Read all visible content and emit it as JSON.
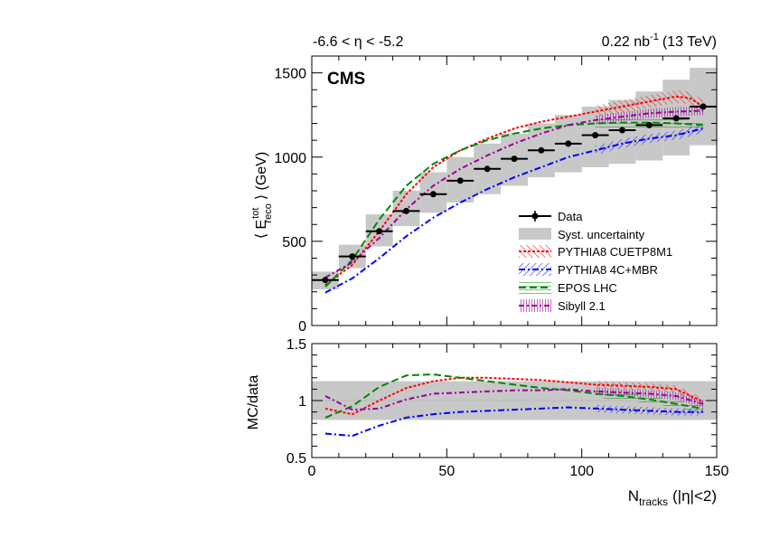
{
  "header": {
    "eta_range": "-6.6 < η < -5.2",
    "lumi_value": "0.22 nb",
    "lumi_exp": "-1",
    "lumi_energy": "(13 TeV)",
    "experiment": "CMS"
  },
  "axes": {
    "top_ylabel_pre": "⟨ E",
    "top_ylabel_sup": "tot",
    "top_ylabel_sub": "reco",
    "top_ylabel_post": "⟩ (GeV)",
    "bottom_ylabel": "MC/data",
    "xlabel_main": "N",
    "xlabel_sub": "tracks",
    "xlabel_post": "(|η|<2)"
  },
  "legend": {
    "data": "Data",
    "syst": "Syst. uncertainty",
    "pythia_cuetp": "PYTHIA8 CUETP8M1",
    "pythia_4c": "PYTHIA8 4C+MBR",
    "epos": "EPOS LHC",
    "sibyll": "Sibyll 2.1"
  },
  "colors": {
    "data": "#000000",
    "syst": "#c8c8c8",
    "pythia_cuetp": "#ff0000",
    "pythia_4c": "#0000ff",
    "epos": "#008800",
    "sibyll": "#990099"
  },
  "chart_data": [
    {
      "type": "line",
      "panel": "top",
      "title": "-6.6 < η < -5.2",
      "xlabel": "N_tracks (|η|<2)",
      "ylabel": "⟨E_reco^tot⟩ (GeV)",
      "xlim": [
        0,
        150
      ],
      "ylim": [
        0,
        1600
      ],
      "xticks": [
        0,
        50,
        100,
        150
      ],
      "yticks": [
        0,
        500,
        1000,
        1500
      ],
      "data": {
        "x": [
          5,
          15,
          25,
          35,
          45,
          55,
          65,
          75,
          85,
          95,
          105,
          115,
          125,
          135,
          145
        ],
        "xerr": 5,
        "y": [
          270,
          410,
          560,
          680,
          780,
          860,
          930,
          990,
          1040,
          1080,
          1130,
          1160,
          1190,
          1230,
          1300
        ],
        "syst_low": [
          215,
          340,
          470,
          590,
          670,
          730,
          780,
          830,
          880,
          910,
          940,
          960,
          980,
          1010,
          1070
        ],
        "syst_high": [
          320,
          480,
          660,
          800,
          910,
          1000,
          1080,
          1140,
          1200,
          1250,
          1300,
          1340,
          1390,
          1460,
          1530
        ]
      },
      "series": [
        {
          "name": "PYTHIA8 CUETP8M1",
          "x": [
            5,
            15,
            25,
            35,
            45,
            55,
            65,
            75,
            85,
            95,
            105,
            115,
            125,
            135,
            140,
            145
          ],
          "values": [
            240,
            360,
            560,
            780,
            940,
            1040,
            1110,
            1170,
            1210,
            1240,
            1270,
            1300,
            1330,
            1360,
            1350,
            1300
          ]
        },
        {
          "name": "PYTHIA8 4C+MBR",
          "x": [
            5,
            15,
            25,
            35,
            45,
            55,
            65,
            75,
            85,
            95,
            105,
            115,
            125,
            135,
            145
          ],
          "values": [
            195,
            280,
            400,
            530,
            640,
            730,
            810,
            880,
            940,
            1000,
            1040,
            1080,
            1110,
            1130,
            1170
          ]
        },
        {
          "name": "EPOS LHC",
          "x": [
            5,
            15,
            25,
            35,
            45,
            55,
            65,
            75,
            85,
            95,
            105,
            115,
            125,
            135,
            145
          ],
          "values": [
            230,
            390,
            630,
            830,
            960,
            1040,
            1100,
            1140,
            1170,
            1190,
            1200,
            1205,
            1205,
            1200,
            1190
          ]
        },
        {
          "name": "Sibyll 2.1",
          "x": [
            5,
            15,
            25,
            35,
            45,
            55,
            65,
            75,
            85,
            95,
            105,
            115,
            125,
            135,
            145
          ],
          "values": [
            285,
            375,
            520,
            690,
            830,
            930,
            1010,
            1080,
            1140,
            1190,
            1220,
            1240,
            1260,
            1270,
            1275
          ]
        }
      ]
    },
    {
      "type": "line",
      "panel": "bottom",
      "xlabel": "N_tracks (|η|<2)",
      "ylabel": "MC/data",
      "xlim": [
        0,
        150
      ],
      "ylim": [
        0.5,
        1.5
      ],
      "xticks": [
        0,
        50,
        100,
        150
      ],
      "yticks": [
        0.5,
        1,
        1.5
      ],
      "syst_band": {
        "x": [
          0,
          150
        ],
        "low": 0.83,
        "high": 1.17
      },
      "series": [
        {
          "name": "PYTHIA8 CUETP8M1",
          "x": [
            5,
            15,
            25,
            35,
            45,
            55,
            65,
            75,
            85,
            95,
            105,
            115,
            125,
            135,
            145
          ],
          "values": [
            0.93,
            0.88,
            1.0,
            1.11,
            1.17,
            1.2,
            1.2,
            1.19,
            1.18,
            1.16,
            1.14,
            1.13,
            1.12,
            1.1,
            0.99
          ]
        },
        {
          "name": "PYTHIA8 4C+MBR",
          "x": [
            5,
            15,
            25,
            35,
            45,
            55,
            65,
            75,
            85,
            95,
            105,
            115,
            125,
            135,
            145
          ],
          "values": [
            0.71,
            0.69,
            0.78,
            0.85,
            0.88,
            0.9,
            0.91,
            0.92,
            0.93,
            0.94,
            0.93,
            0.92,
            0.91,
            0.9,
            0.9
          ]
        },
        {
          "name": "EPOS LHC",
          "x": [
            5,
            15,
            25,
            35,
            45,
            55,
            65,
            75,
            85,
            95,
            105,
            115,
            125,
            135,
            145
          ],
          "values": [
            0.85,
            0.95,
            1.12,
            1.22,
            1.23,
            1.2,
            1.17,
            1.14,
            1.11,
            1.09,
            1.06,
            1.04,
            1.01,
            0.97,
            0.93
          ]
        },
        {
          "name": "Sibyll 2.1",
          "x": [
            5,
            15,
            25,
            35,
            45,
            55,
            65,
            75,
            85,
            95,
            105,
            115,
            125,
            135,
            145
          ],
          "values": [
            1.04,
            0.92,
            0.93,
            1.01,
            1.06,
            1.07,
            1.08,
            1.09,
            1.09,
            1.1,
            1.08,
            1.07,
            1.06,
            1.04,
            0.97
          ]
        }
      ]
    }
  ]
}
